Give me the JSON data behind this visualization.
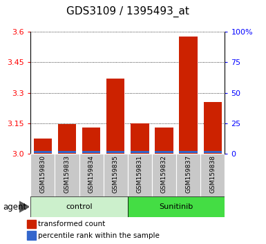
{
  "title": "GDS3109 / 1395493_at",
  "samples": [
    "GSM159830",
    "GSM159833",
    "GSM159834",
    "GSM159835",
    "GSM159831",
    "GSM159832",
    "GSM159837",
    "GSM159838"
  ],
  "red_values": [
    3.075,
    3.145,
    3.13,
    3.37,
    3.148,
    3.128,
    3.578,
    3.255
  ],
  "blue_heights": [
    0.008,
    0.008,
    0.008,
    0.01,
    0.008,
    0.008,
    0.01,
    0.009
  ],
  "y_min": 3.0,
  "y_max": 3.6,
  "y_ticks_left": [
    3.0,
    3.15,
    3.3,
    3.45,
    3.6
  ],
  "y_ticks_right": [
    0,
    25,
    50,
    75,
    100
  ],
  "bar_color_red": "#cc2200",
  "bar_color_blue": "#3366cc",
  "bar_width": 0.75,
  "plot_bg": "#ffffff",
  "sample_bg": "#c8c8c8",
  "group_info": [
    {
      "label": "control",
      "start": 0,
      "end": 3,
      "color": "#ccf0cc"
    },
    {
      "label": "Sunitinib",
      "start": 4,
      "end": 7,
      "color": "#44dd44"
    }
  ],
  "legend_red": "transformed count",
  "legend_blue": "percentile rank within the sample",
  "agent_label": "agent",
  "title_fontsize": 11,
  "tick_fontsize": 8,
  "sample_fontsize": 6.5,
  "group_fontsize": 8,
  "legend_fontsize": 7.5
}
